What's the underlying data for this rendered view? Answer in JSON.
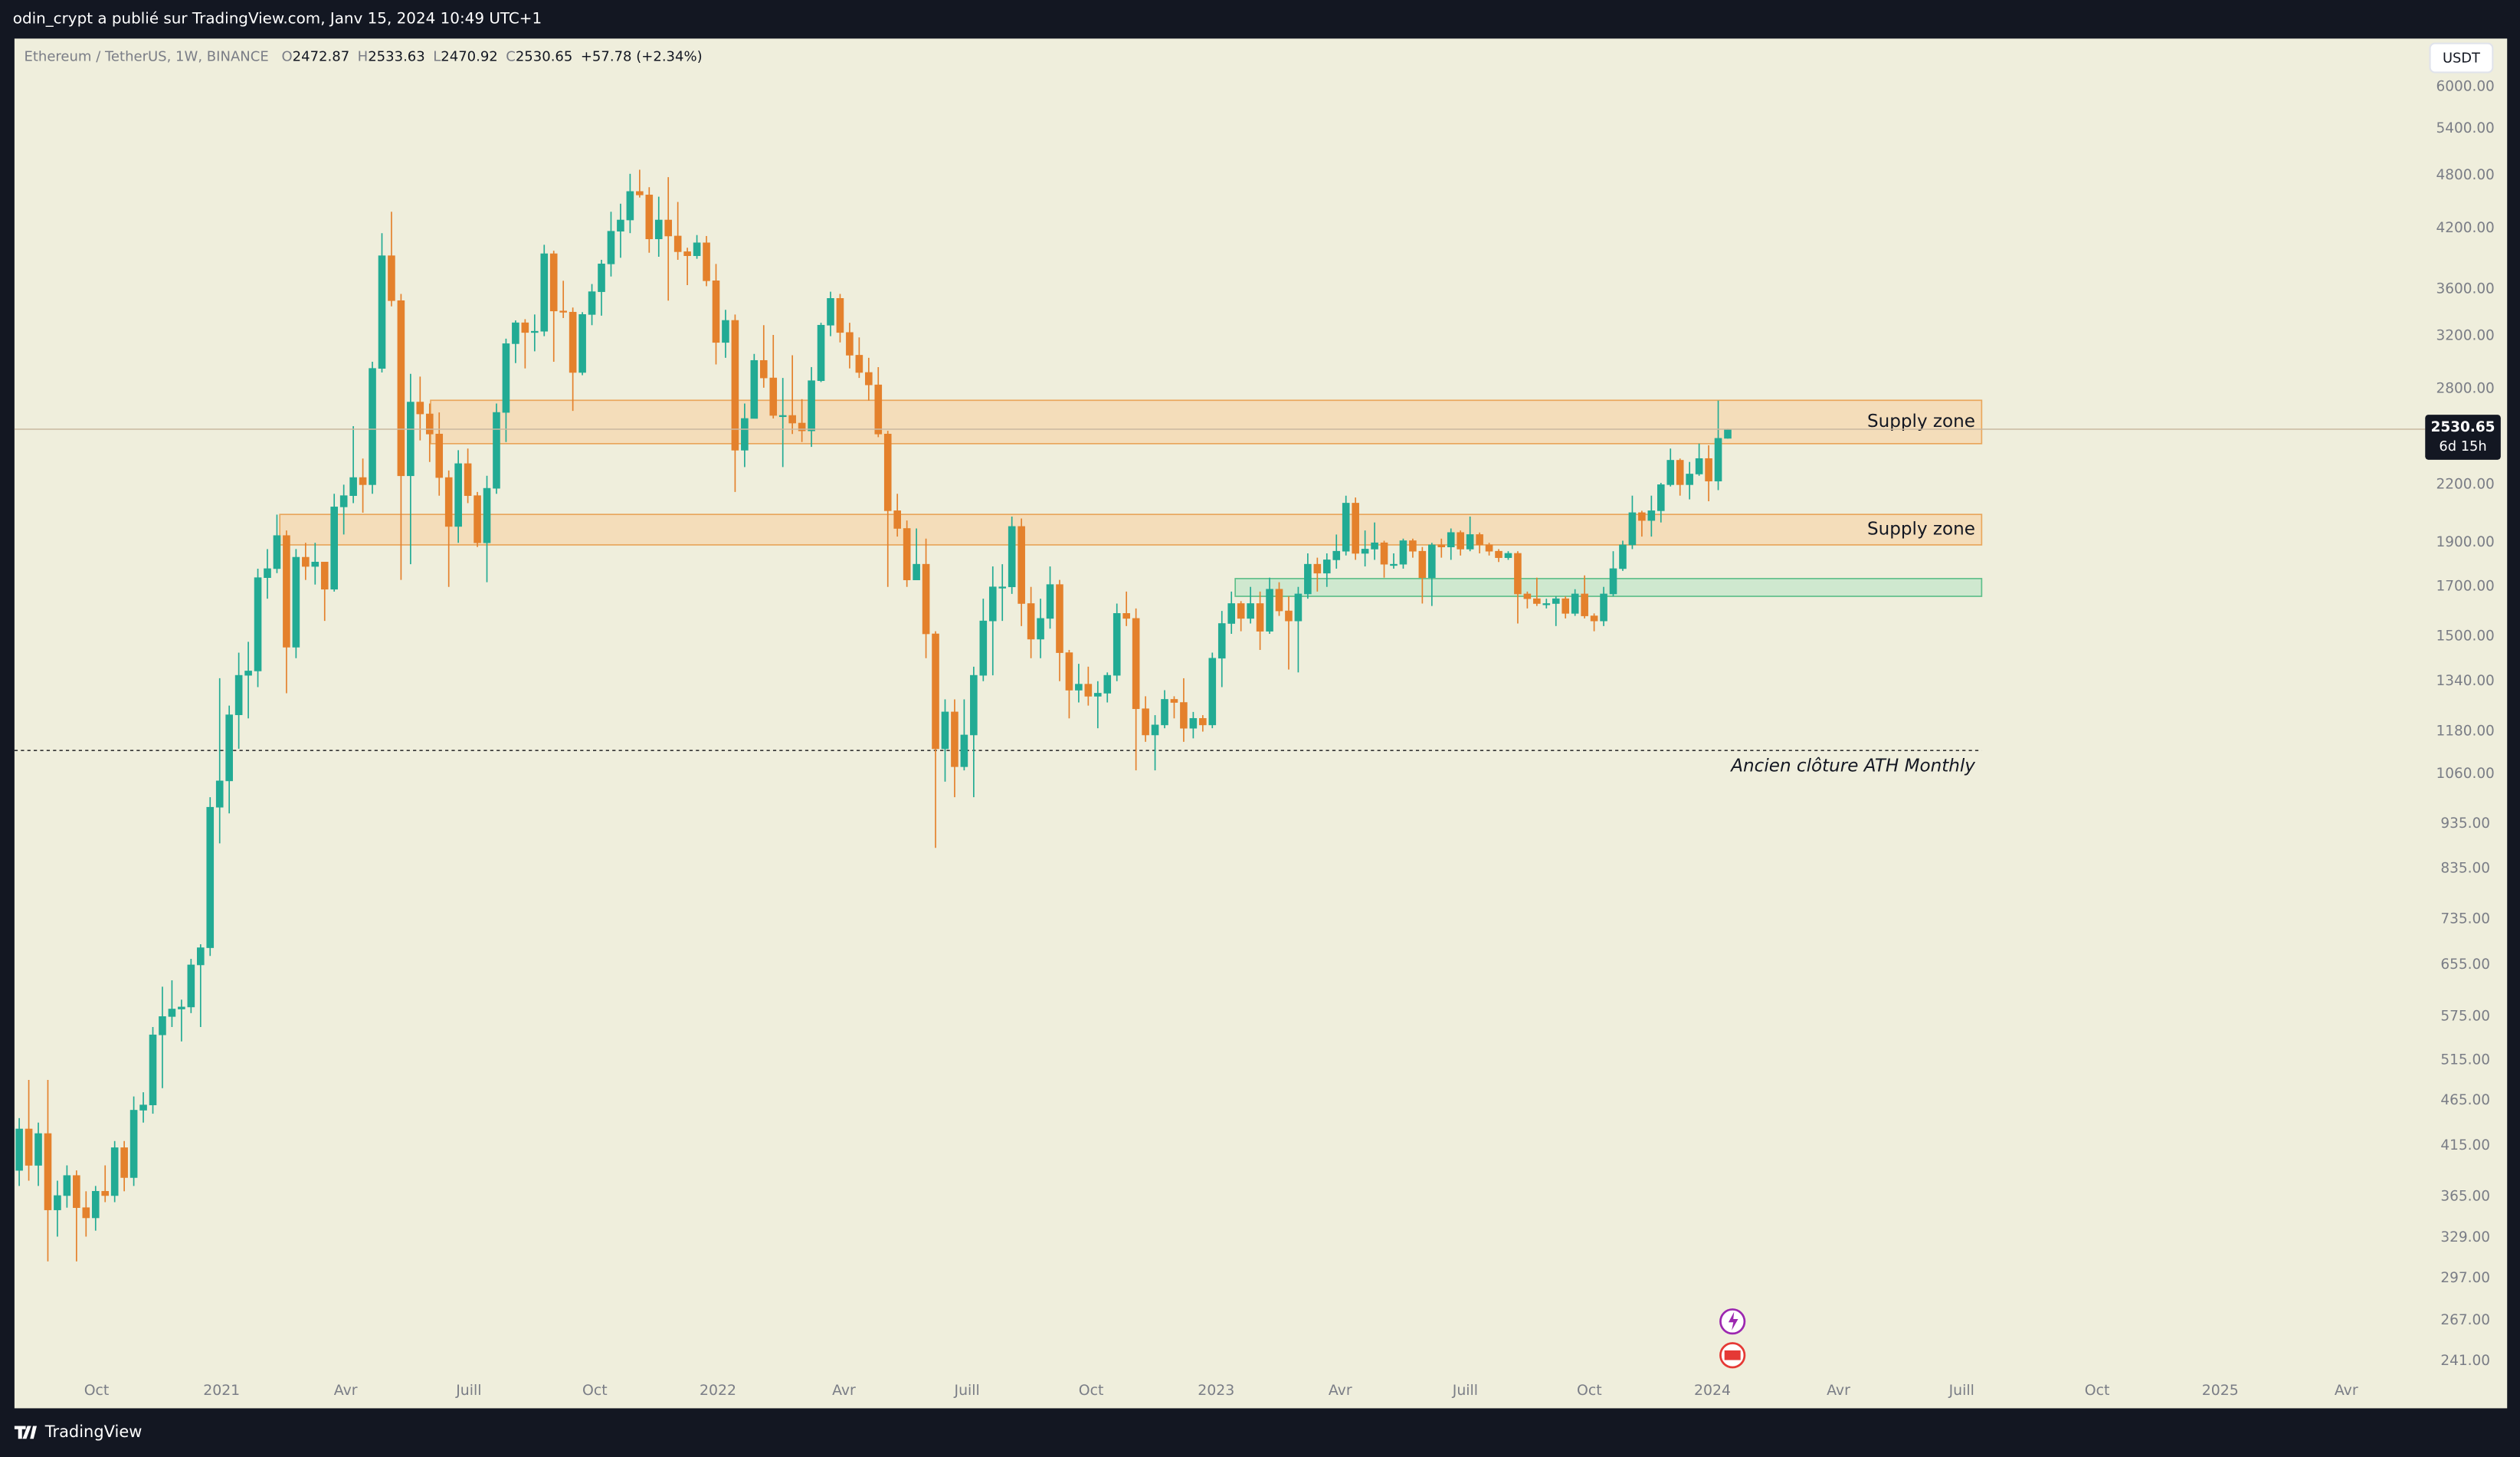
{
  "header": {
    "text": "odin_crypt a publié sur TradingView.com, Janv 15, 2024 10:49 UTC+1"
  },
  "footer": {
    "brand": "TradingView"
  },
  "chart_data": {
    "type": "candlestick",
    "symbol": "Ethereum / TetherUS, 1W, BINANCE",
    "ohlc_letters": [
      "O",
      "H",
      "L",
      "C"
    ],
    "change": "+57.78 (+2.34%)",
    "currency_button": "USDT",
    "countdown": "6d 15h",
    "log_scale": true,
    "grid": false,
    "up_color": "#22ab94",
    "down_color": "#e4812c",
    "candles": [
      [
        390,
        445,
        375,
        433
      ],
      [
        433,
        490,
        380,
        395
      ],
      [
        395,
        440,
        375,
        428
      ],
      [
        428,
        490,
        310,
        353
      ],
      [
        353,
        380,
        330,
        366
      ],
      [
        366,
        395,
        355,
        385
      ],
      [
        385,
        390,
        310,
        355
      ],
      [
        355,
        370,
        330,
        346
      ],
      [
        346,
        375,
        335,
        370
      ],
      [
        370,
        395,
        360,
        366
      ],
      [
        366,
        420,
        360,
        413
      ],
      [
        413,
        420,
        370,
        383
      ],
      [
        383,
        470,
        375,
        454
      ],
      [
        454,
        475,
        440,
        460
      ],
      [
        460,
        560,
        450,
        549
      ],
      [
        549,
        620,
        480,
        575
      ],
      [
        575,
        630,
        560,
        586
      ],
      [
        586,
        600,
        540,
        589
      ],
      [
        589,
        665,
        580,
        655
      ],
      [
        655,
        690,
        560,
        684
      ],
      [
        684,
        1000,
        670,
        975
      ],
      [
        975,
        1350,
        890,
        1042
      ],
      [
        1042,
        1260,
        960,
        1231
      ],
      [
        1231,
        1440,
        1130,
        1360
      ],
      [
        1360,
        1480,
        1220,
        1375
      ],
      [
        1375,
        1780,
        1320,
        1740
      ],
      [
        1740,
        1870,
        1650,
        1780
      ],
      [
        1780,
        2040,
        1760,
        1935
      ],
      [
        1935,
        1960,
        1300,
        1460
      ],
      [
        1460,
        1870,
        1420,
        1832
      ],
      [
        1832,
        1900,
        1730,
        1790
      ],
      [
        1790,
        1900,
        1710,
        1810
      ],
      [
        1810,
        1810,
        1560,
        1690
      ],
      [
        1690,
        2150,
        1680,
        2080
      ],
      [
        2080,
        2200,
        1940,
        2140
      ],
      [
        2140,
        2550,
        2100,
        2240
      ],
      [
        2240,
        2350,
        2050,
        2200
      ],
      [
        2200,
        3000,
        2150,
        2950
      ],
      [
        2950,
        4150,
        2920,
        3920
      ],
      [
        3920,
        4380,
        3450,
        3500
      ],
      [
        3500,
        3560,
        1730,
        2250
      ],
      [
        2250,
        2910,
        1800,
        2710
      ],
      [
        2710,
        2890,
        2460,
        2630
      ],
      [
        2630,
        2700,
        2330,
        2500
      ],
      [
        2500,
        2640,
        2140,
        2240
      ],
      [
        2240,
        2280,
        1700,
        1980
      ],
      [
        1980,
        2400,
        1900,
        2320
      ],
      [
        2320,
        2410,
        2100,
        2140
      ],
      [
        2140,
        2160,
        1880,
        1900
      ],
      [
        1900,
        2250,
        1720,
        2180
      ],
      [
        2180,
        2700,
        2150,
        2640
      ],
      [
        2640,
        3180,
        2450,
        3140
      ],
      [
        3140,
        3330,
        2990,
        3310
      ],
      [
        3310,
        3340,
        2950,
        3230
      ],
      [
        3230,
        3380,
        3080,
        3240
      ],
      [
        3240,
        4030,
        3200,
        3940
      ],
      [
        3940,
        3970,
        3000,
        3410
      ],
      [
        3410,
        3680,
        3350,
        3400
      ],
      [
        3400,
        3440,
        2650,
        2920
      ],
      [
        2920,
        3400,
        2900,
        3380
      ],
      [
        3380,
        3650,
        3290,
        3580
      ],
      [
        3580,
        3880,
        3370,
        3840
      ],
      [
        3840,
        4380,
        3720,
        4170
      ],
      [
        4170,
        4470,
        3900,
        4290
      ],
      [
        4290,
        4820,
        4150,
        4610
      ],
      [
        4610,
        4870,
        4540,
        4570
      ],
      [
        4570,
        4660,
        3950,
        4090
      ],
      [
        4090,
        4550,
        3910,
        4290
      ],
      [
        4290,
        4780,
        3500,
        4120
      ],
      [
        4120,
        4490,
        3880,
        3960
      ],
      [
        3960,
        4000,
        3640,
        3920
      ],
      [
        3920,
        4130,
        3890,
        4050
      ],
      [
        4050,
        4120,
        3630,
        3680
      ],
      [
        3680,
        3840,
        2980,
        3150
      ],
      [
        3150,
        3420,
        3030,
        3330
      ],
      [
        3330,
        3380,
        2160,
        2400
      ],
      [
        2400,
        2700,
        2300,
        2600
      ],
      [
        2600,
        3060,
        2600,
        3010
      ],
      [
        3010,
        3290,
        2810,
        2880
      ],
      [
        2880,
        3210,
        2600,
        2620
      ],
      [
        2620,
        2880,
        2300,
        2620
      ],
      [
        2620,
        3050,
        2500,
        2570
      ],
      [
        2570,
        2730,
        2450,
        2520
      ],
      [
        2520,
        2960,
        2420,
        2860
      ],
      [
        2860,
        3310,
        2850,
        3290
      ],
      [
        3290,
        3580,
        3200,
        3520
      ],
      [
        3520,
        3560,
        3150,
        3230
      ],
      [
        3230,
        3310,
        2950,
        3050
      ],
      [
        3050,
        3190,
        2880,
        2920
      ],
      [
        2920,
        3030,
        2720,
        2830
      ],
      [
        2830,
        2960,
        2480,
        2500
      ],
      [
        2500,
        2520,
        1700,
        2060
      ],
      [
        2060,
        2150,
        1930,
        1970
      ],
      [
        1970,
        2010,
        1700,
        1730
      ],
      [
        1730,
        1970,
        1730,
        1800
      ],
      [
        1800,
        1920,
        1420,
        1510
      ],
      [
        1510,
        1520,
        880,
        1130
      ],
      [
        1130,
        1280,
        1040,
        1240
      ],
      [
        1240,
        1280,
        1000,
        1080
      ],
      [
        1080,
        1280,
        1070,
        1170
      ],
      [
        1170,
        1390,
        1000,
        1360
      ],
      [
        1360,
        1650,
        1340,
        1560
      ],
      [
        1560,
        1790,
        1360,
        1700
      ],
      [
        1700,
        1800,
        1560,
        1700
      ],
      [
        1700,
        2030,
        1670,
        1980
      ],
      [
        1980,
        2020,
        1540,
        1630
      ],
      [
        1630,
        1700,
        1420,
        1490
      ],
      [
        1490,
        1650,
        1420,
        1570
      ],
      [
        1570,
        1790,
        1530,
        1710
      ],
      [
        1710,
        1730,
        1340,
        1440
      ],
      [
        1440,
        1450,
        1220,
        1310
      ],
      [
        1310,
        1400,
        1270,
        1330
      ],
      [
        1330,
        1390,
        1260,
        1290
      ],
      [
        1290,
        1340,
        1190,
        1300
      ],
      [
        1300,
        1370,
        1270,
        1360
      ],
      [
        1360,
        1630,
        1340,
        1590
      ],
      [
        1590,
        1680,
        1540,
        1570
      ],
      [
        1570,
        1610,
        1070,
        1250
      ],
      [
        1250,
        1290,
        1150,
        1170
      ],
      [
        1170,
        1230,
        1070,
        1200
      ],
      [
        1200,
        1310,
        1190,
        1280
      ],
      [
        1280,
        1290,
        1220,
        1270
      ],
      [
        1270,
        1350,
        1150,
        1190
      ],
      [
        1190,
        1240,
        1160,
        1220
      ],
      [
        1220,
        1230,
        1180,
        1200
      ],
      [
        1200,
        1440,
        1190,
        1420
      ],
      [
        1420,
        1600,
        1320,
        1550
      ],
      [
        1550,
        1680,
        1510,
        1630
      ],
      [
        1630,
        1640,
        1520,
        1570
      ],
      [
        1570,
        1700,
        1550,
        1630
      ],
      [
        1630,
        1680,
        1450,
        1520
      ],
      [
        1520,
        1740,
        1510,
        1690
      ],
      [
        1690,
        1720,
        1580,
        1600
      ],
      [
        1600,
        1660,
        1380,
        1560
      ],
      [
        1560,
        1700,
        1370,
        1670
      ],
      [
        1670,
        1850,
        1650,
        1800
      ],
      [
        1800,
        1830,
        1680,
        1760
      ],
      [
        1760,
        1850,
        1700,
        1820
      ],
      [
        1820,
        1940,
        1780,
        1860
      ],
      [
        1860,
        2140,
        1840,
        2100
      ],
      [
        2100,
        2130,
        1820,
        1850
      ],
      [
        1850,
        1960,
        1790,
        1870
      ],
      [
        1870,
        2000,
        1820,
        1900
      ],
      [
        1900,
        1910,
        1740,
        1800
      ],
      [
        1800,
        1850,
        1780,
        1800
      ],
      [
        1800,
        1920,
        1780,
        1910
      ],
      [
        1910,
        1920,
        1830,
        1860
      ],
      [
        1860,
        1880,
        1630,
        1740
      ],
      [
        1740,
        1900,
        1620,
        1890
      ],
      [
        1890,
        1920,
        1830,
        1880
      ],
      [
        1880,
        1970,
        1820,
        1950
      ],
      [
        1950,
        1960,
        1840,
        1870
      ],
      [
        1870,
        2030,
        1860,
        1940
      ],
      [
        1940,
        1950,
        1850,
        1890
      ],
      [
        1890,
        1900,
        1840,
        1860
      ],
      [
        1860,
        1870,
        1810,
        1830
      ],
      [
        1830,
        1860,
        1820,
        1850
      ],
      [
        1850,
        1860,
        1550,
        1670
      ],
      [
        1670,
        1680,
        1610,
        1650
      ],
      [
        1650,
        1740,
        1620,
        1630
      ],
      [
        1630,
        1650,
        1610,
        1630
      ],
      [
        1630,
        1660,
        1540,
        1650
      ],
      [
        1650,
        1660,
        1570,
        1590
      ],
      [
        1590,
        1690,
        1580,
        1670
      ],
      [
        1670,
        1750,
        1570,
        1580
      ],
      [
        1580,
        1590,
        1520,
        1560
      ],
      [
        1560,
        1700,
        1540,
        1670
      ],
      [
        1670,
        1860,
        1660,
        1780
      ],
      [
        1780,
        1910,
        1770,
        1890
      ],
      [
        1890,
        2140,
        1870,
        2050
      ],
      [
        2050,
        2060,
        1930,
        2010
      ],
      [
        2010,
        2140,
        1930,
        2060
      ],
      [
        2060,
        2210,
        2000,
        2200
      ],
      [
        2200,
        2410,
        2190,
        2340
      ],
      [
        2340,
        2350,
        2140,
        2200
      ],
      [
        2200,
        2330,
        2120,
        2260
      ],
      [
        2260,
        2440,
        2250,
        2350
      ],
      [
        2350,
        2430,
        2110,
        2220
      ],
      [
        2220,
        2720,
        2170,
        2473
      ],
      [
        2472.87,
        2533.63,
        2470.92,
        2530.65
      ]
    ],
    "xlim": [
      -0.5,
      251.9
    ],
    "ylim": [
      214,
      6780
    ],
    "xticks": [
      {
        "value": 8.1,
        "label": "Oct"
      },
      {
        "value": 21.2,
        "label": "2021"
      },
      {
        "value": 34.2,
        "label": "Avr"
      },
      {
        "value": 47.1,
        "label": "Juill"
      },
      {
        "value": 60.3,
        "label": "Oct"
      },
      {
        "value": 73.2,
        "label": "2022"
      },
      {
        "value": 86.4,
        "label": "Avr"
      },
      {
        "value": 99.3,
        "label": "Juill"
      },
      {
        "value": 112.3,
        "label": "Oct"
      },
      {
        "value": 125.4,
        "label": "2023"
      },
      {
        "value": 138.4,
        "label": "Avr"
      },
      {
        "value": 151.5,
        "label": "Juill"
      },
      {
        "value": 164.5,
        "label": "Oct"
      },
      {
        "value": 177.4,
        "label": "2024"
      },
      {
        "value": 190.6,
        "label": "Avr"
      },
      {
        "value": 203.5,
        "label": "Juill"
      },
      {
        "value": 217.7,
        "label": "Oct"
      },
      {
        "value": 230.6,
        "label": "2025"
      },
      {
        "value": 243.8,
        "label": "Avr"
      }
    ],
    "yticks": [
      {
        "value": 6000,
        "label": "6000.00"
      },
      {
        "value": 5400,
        "label": "5400.00"
      },
      {
        "value": 4800,
        "label": "4800.00"
      },
      {
        "value": 4200,
        "label": "4200.00"
      },
      {
        "value": 3600,
        "label": "3600.00"
      },
      {
        "value": 3200,
        "label": "3200.00"
      },
      {
        "value": 2800,
        "label": "2800.00"
      },
      {
        "value": 2200,
        "label": "2200.00"
      },
      {
        "value": 1900,
        "label": "1900.00"
      },
      {
        "value": 1700,
        "label": "1700.00"
      },
      {
        "value": 1500,
        "label": "1500.00"
      },
      {
        "value": 1340,
        "label": "1340.00"
      },
      {
        "value": 1180,
        "label": "1180.00"
      },
      {
        "value": 1060,
        "label": "1060.00"
      },
      {
        "value": 935,
        "label": "935.00"
      },
      {
        "value": 835,
        "label": "835.00"
      },
      {
        "value": 735,
        "label": "735.00"
      },
      {
        "value": 655,
        "label": "655.00"
      },
      {
        "value": 575,
        "label": "575.00"
      },
      {
        "value": 515,
        "label": "515.00"
      },
      {
        "value": 465,
        "label": "465.00"
      },
      {
        "value": 415,
        "label": "415.00"
      },
      {
        "value": 365,
        "label": "365.00"
      },
      {
        "value": 329,
        "label": "329.00"
      },
      {
        "value": 297,
        "label": "297.00"
      },
      {
        "value": 267,
        "label": "267.00"
      },
      {
        "value": 241,
        "label": "241.00"
      }
    ],
    "zones": [
      {
        "label": "Supply zone",
        "top": 2722,
        "bottom": 2440,
        "start": 43.1,
        "end": 205.6,
        "color": "#f5d9b4"
      },
      {
        "label": "Supply zone",
        "top": 2041,
        "bottom": 1890,
        "start": 27.3,
        "end": 205.6,
        "color": "#f5d9b4"
      },
      {
        "top": 1736,
        "bottom": 1660,
        "start": 127.4,
        "end": 205.6,
        "color": "#c9e6cc"
      }
    ],
    "levels": [
      {
        "value": 1125,
        "label": "Ancien clôture ATH Monthly"
      }
    ]
  }
}
